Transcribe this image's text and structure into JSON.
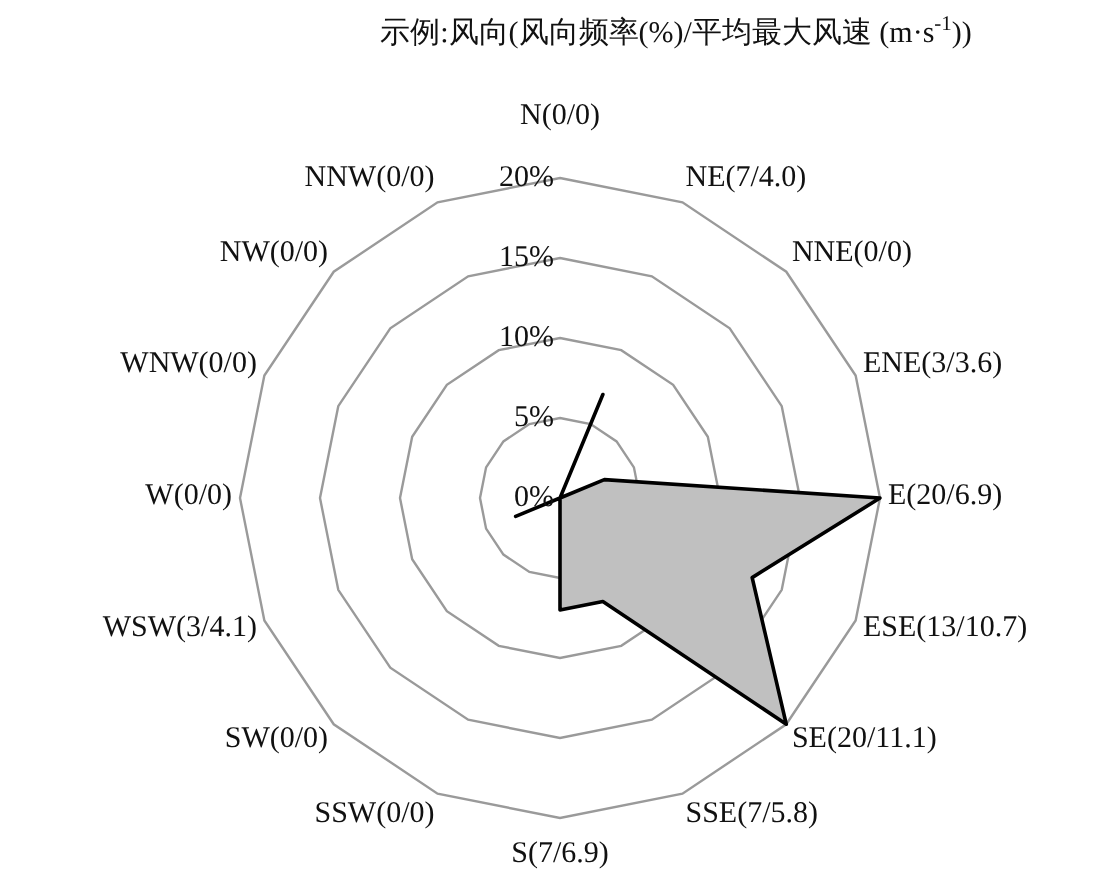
{
  "chart_data": {
    "type": "radar",
    "title": "示例:风向(风向频率(%)/平均最大风速 (m·s$^{-1}$))",
    "categories": [
      "N(0/0)",
      "NE(7/4.0)",
      "NNE(0/0)",
      "ENE(3/3.6)",
      "E(20/6.9)",
      "ESE(13/10.7)",
      "SE(20/11.1)",
      "SSE(7/5.8)",
      "S(7/6.9)",
      "SSW(0/0)",
      "SW(0/0)",
      "WSW(3/4.1)",
      "W(0/0)",
      "WNW(0/0)",
      "NW(0/0)",
      "NNW(0/0)"
    ],
    "series": [
      {
        "color": "#c0c0c0",
        "values": [
          0,
          7,
          0,
          3,
          20,
          13,
          20,
          7,
          7,
          0,
          0,
          3,
          0,
          0,
          0,
          0
        ]
      }
    ],
    "ylim": [
      0,
      20
    ],
    "yticks": [
      {
        "value": 0,
        "label": "0%"
      },
      {
        "value": 5,
        "label": "5%"
      },
      {
        "value": 10,
        "label": "10%"
      },
      {
        "value": 15,
        "label": "15%"
      },
      {
        "value": 20,
        "label": "20%"
      }
    ],
    "grid": true
  }
}
